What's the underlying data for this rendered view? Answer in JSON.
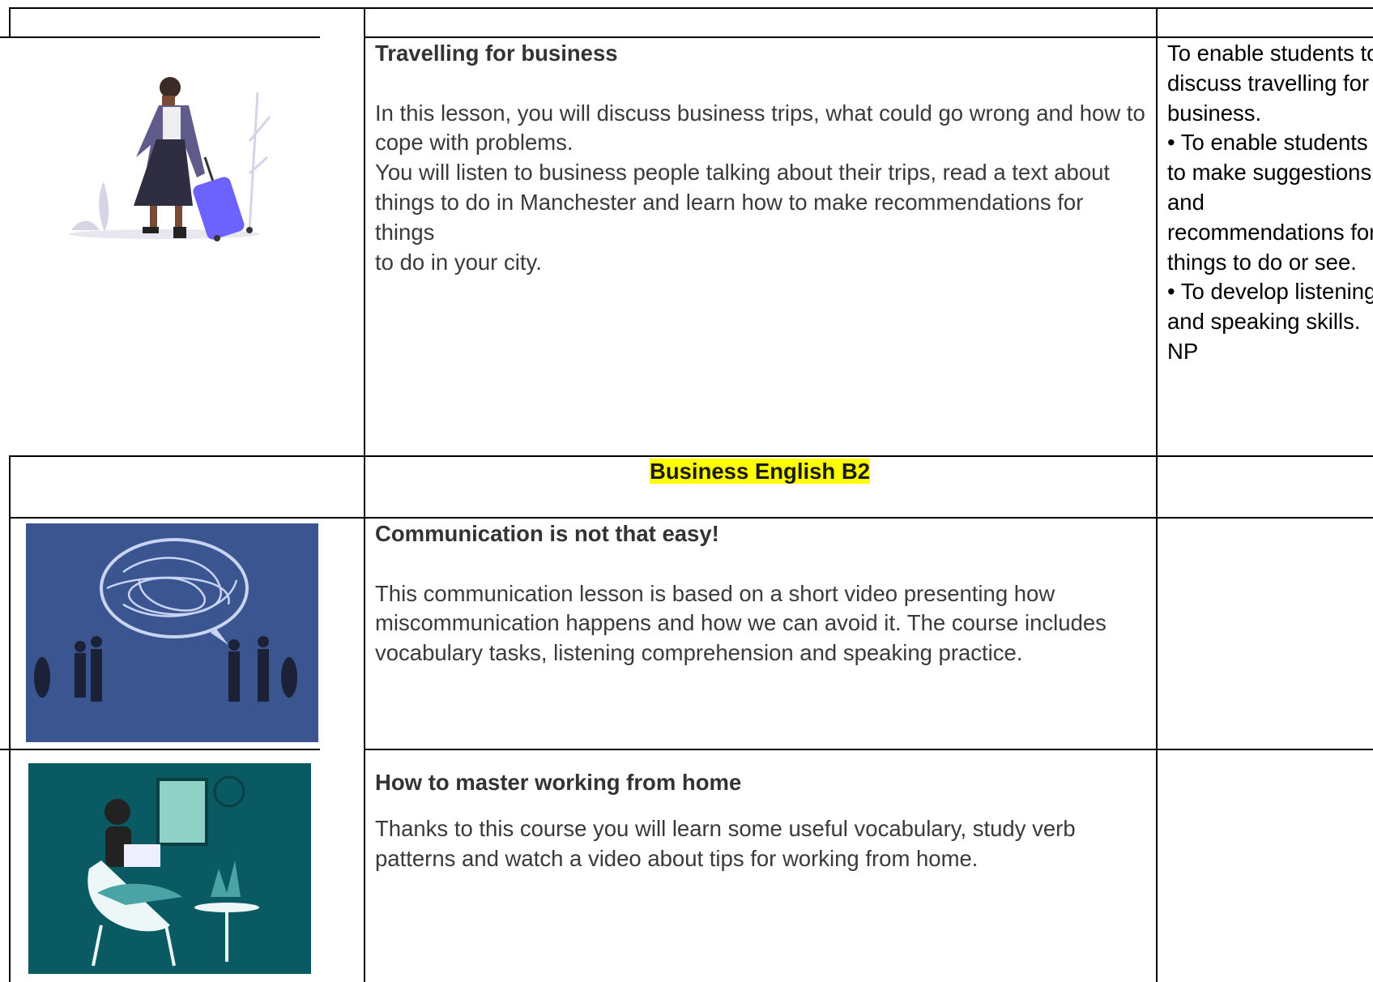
{
  "table": {
    "section_label": "Business English B2",
    "rows": [
      {
        "title": "Travelling for business",
        "description": [
          "In this lesson, you will discuss business trips, what could go wrong and how to cope with problems.",
          "You will listen to business people talking about their trips, read a text about things to do in Manchester and learn how to make recommendations for things",
          "to do in your city."
        ],
        "objectives": [
          "To enable students to discuss travelling for business.",
          "• To enable students to make suggestions and recommendations for things to do or see.",
          "• To develop listening and speaking skills.",
          "NP"
        ]
      },
      {
        "title": "Communication is not that easy!",
        "description": [
          "This communication lesson is based on a short video presenting how miscommunication happens and how we can avoid it. The course includes vocabulary tasks, listening comprehension and speaking practice."
        ]
      },
      {
        "title": "How to master working from home",
        "description": [
          "Thanks to this course you will learn some useful vocabulary, study verb patterns and watch a video about tips for working from home."
        ]
      }
    ]
  }
}
